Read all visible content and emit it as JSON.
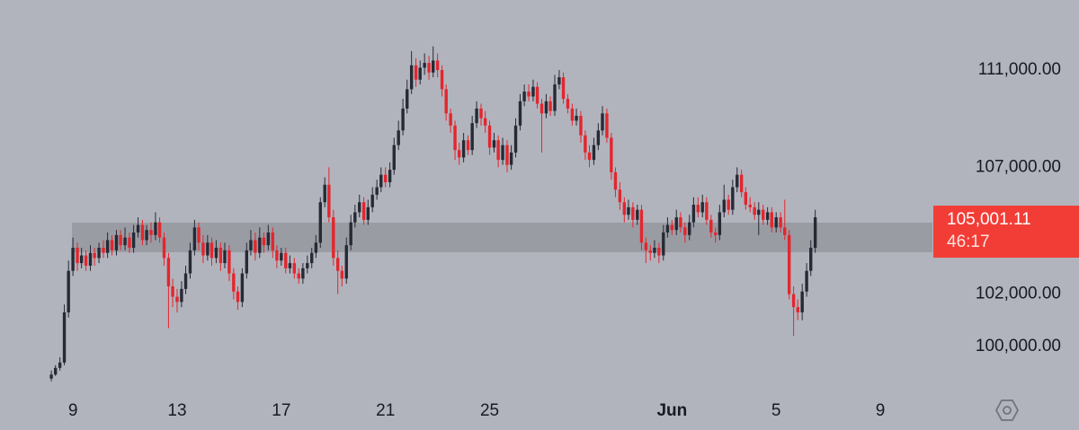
{
  "chart_data": {
    "type": "candlestick",
    "x": [
      8.17,
      8.33,
      8.5,
      8.67,
      8.83,
      9,
      9.17,
      9.33,
      9.5,
      9.67,
      9.83,
      10,
      10.17,
      10.33,
      10.5,
      10.67,
      10.83,
      11,
      11.17,
      11.33,
      11.5,
      11.67,
      11.83,
      12,
      12.17,
      12.33,
      12.5,
      12.67,
      12.83,
      13,
      13.17,
      13.33,
      13.5,
      13.67,
      13.83,
      14,
      14.17,
      14.33,
      14.5,
      14.67,
      14.83,
      15,
      15.17,
      15.33,
      15.5,
      15.67,
      15.83,
      16,
      16.17,
      16.33,
      16.5,
      16.67,
      16.83,
      17,
      17.17,
      17.33,
      17.5,
      17.67,
      17.83,
      18,
      18.17,
      18.33,
      18.5,
      18.67,
      18.83,
      19,
      19.17,
      19.33,
      19.5,
      19.67,
      19.83,
      20,
      20.17,
      20.33,
      20.5,
      20.67,
      20.83,
      21,
      21.17,
      21.33,
      21.5,
      21.67,
      21.83,
      22,
      22.17,
      22.33,
      22.5,
      22.67,
      22.83,
      23,
      23.17,
      23.33,
      23.5,
      23.67,
      23.83,
      24,
      24.17,
      24.33,
      24.5,
      24.67,
      24.83,
      25,
      25.17,
      25.33,
      25.5,
      25.67,
      25.83,
      26,
      26.17,
      26.33,
      26.5,
      26.67,
      26.83,
      27,
      27.17,
      27.33,
      27.5,
      27.67,
      27.83,
      28,
      28.17,
      28.33,
      28.5,
      28.67,
      28.83,
      29,
      29.17,
      29.33,
      29.5,
      29.67,
      29.83,
      30,
      30.17,
      30.33,
      30.5,
      30.67,
      30.83,
      31,
      31.17,
      31.33,
      31.5,
      31.67,
      31.83,
      32,
      32.17,
      32.33,
      32.5,
      32.67,
      32.83,
      33,
      33.17,
      33.33,
      33.5,
      33.67,
      33.83,
      34,
      34.17,
      34.33,
      34.5,
      34.67,
      34.83,
      35,
      35.17,
      35.33,
      35.5,
      35.67,
      35.83,
      36,
      36.17,
      36.33,
      36.5,
      36.67,
      36.83,
      37,
      37.17,
      37.33,
      37.5
    ],
    "open": [
      98800,
      98950,
      99200,
      99400,
      101300,
      102900,
      103800,
      103200,
      103500,
      103100,
      103600,
      103400,
      103800,
      103600,
      104100,
      103700,
      104300,
      103900,
      104200,
      103800,
      104400,
      104700,
      104100,
      104500,
      104300,
      104800,
      104200,
      103400,
      102300,
      101900,
      101700,
      102200,
      102800,
      103700,
      104600,
      104000,
      103500,
      104000,
      103400,
      103800,
      103200,
      103700,
      102800,
      102100,
      101700,
      102800,
      103700,
      104100,
      103600,
      104200,
      103900,
      104400,
      103700,
      103300,
      103600,
      103000,
      103200,
      102800,
      102600,
      103000,
      103200,
      103600,
      104000,
      105600,
      106300,
      105000,
      103400,
      102900,
      102600,
      103900,
      104800,
      105200,
      105600,
      104900,
      105400,
      105900,
      106200,
      106700,
      106400,
      106900,
      107900,
      108500,
      109400,
      110200,
      111200,
      110600,
      111100,
      111300,
      110900,
      111400,
      111000,
      110200,
      109200,
      108700,
      107700,
      107400,
      108100,
      107700,
      108800,
      109400,
      109000,
      108700,
      107800,
      108100,
      107300,
      107900,
      107100,
      107600,
      108700,
      109700,
      110100,
      109900,
      110300,
      109600,
      109200,
      109700,
      109300,
      110400,
      110700,
      109800,
      109400,
      108900,
      109100,
      108300,
      107600,
      107300,
      107900,
      108500,
      109200,
      108200,
      106800,
      106100,
      105600,
      105100,
      105400,
      104900,
      105300,
      104000,
      103700,
      103600,
      103800,
      103500,
      104400,
      104700,
      104500,
      105000,
      104600,
      104300,
      104800,
      105500,
      105200,
      105600,
      104900,
      104400,
      104300,
      105200,
      105700,
      105300,
      106200,
      106700,
      106000,
      105500,
      105400,
      105100,
      105300,
      104900,
      105200,
      104600,
      105000,
      104600,
      104300,
      102000,
      101500,
      101300,
      102100,
      102900,
      103800
    ],
    "high": [
      99100,
      99300,
      99600,
      101600,
      103300,
      104200,
      104000,
      103800,
      103700,
      103900,
      103800,
      104000,
      104100,
      104400,
      104300,
      104500,
      104500,
      104600,
      104400,
      104700,
      105000,
      104900,
      104700,
      104800,
      105200,
      105000,
      104400,
      103600,
      102600,
      102200,
      102500,
      103100,
      104000,
      104900,
      104800,
      104300,
      104300,
      104200,
      104100,
      104000,
      104000,
      103900,
      103000,
      102300,
      103000,
      104000,
      104500,
      104400,
      104600,
      104400,
      104700,
      104600,
      103900,
      103800,
      103800,
      103500,
      103400,
      103000,
      103200,
      103500,
      103800,
      104300,
      105800,
      106600,
      107000,
      105300,
      103700,
      103100,
      104200,
      105100,
      105500,
      105900,
      105800,
      105700,
      106200,
      106500,
      107000,
      107000,
      107200,
      108200,
      108900,
      109800,
      110600,
      111800,
      111500,
      111400,
      111700,
      111600,
      112000,
      111700,
      111200,
      110400,
      109400,
      108900,
      108000,
      108400,
      108300,
      109100,
      109700,
      109600,
      109300,
      108900,
      108400,
      108300,
      108200,
      108100,
      107900,
      109000,
      110000,
      110400,
      110400,
      110600,
      110500,
      109800,
      110000,
      109900,
      110800,
      111000,
      110900,
      110000,
      109600,
      109400,
      109300,
      108500,
      107900,
      108200,
      108800,
      109500,
      109400,
      108400,
      107000,
      106400,
      105800,
      105700,
      105600,
      105500,
      105500,
      104200,
      103900,
      104100,
      104000,
      104700,
      105000,
      104900,
      105300,
      105200,
      104800,
      105100,
      105800,
      105800,
      105900,
      105800,
      105100,
      104600,
      105500,
      106300,
      105900,
      106500,
      107000,
      106900,
      106200,
      105800,
      105600,
      105600,
      105500,
      105400,
      105400,
      105200,
      105200,
      105700,
      104500,
      102300,
      101800,
      102400,
      103200,
      104100,
      105300
    ],
    "low": [
      98700,
      98900,
      99100,
      99300,
      101100,
      102700,
      102900,
      103000,
      102900,
      102900,
      103100,
      103200,
      103400,
      103400,
      103500,
      103500,
      103700,
      103700,
      103600,
      103600,
      104200,
      103900,
      103900,
      104000,
      104100,
      104000,
      103100,
      100700,
      101500,
      101300,
      101500,
      102000,
      102600,
      103500,
      103700,
      103200,
      103300,
      103100,
      103200,
      102900,
      103000,
      102500,
      101800,
      101400,
      101500,
      102600,
      103500,
      103300,
      103400,
      103600,
      103700,
      103400,
      103000,
      103100,
      102800,
      102800,
      102600,
      102400,
      102400,
      102800,
      103000,
      103400,
      103800,
      105400,
      104800,
      103100,
      102000,
      102300,
      102400,
      103700,
      104600,
      105000,
      104700,
      104700,
      105200,
      105700,
      106000,
      106200,
      106200,
      106700,
      107700,
      108300,
      109200,
      110000,
      110300,
      110400,
      110800,
      110600,
      110700,
      110700,
      109900,
      108900,
      108400,
      107300,
      107100,
      107200,
      107500,
      107500,
      108600,
      108700,
      108400,
      107500,
      107600,
      107000,
      107100,
      106800,
      106900,
      107400,
      108500,
      109500,
      109700,
      109700,
      109400,
      107600,
      109000,
      109100,
      109100,
      110200,
      109600,
      109200,
      108700,
      108700,
      108000,
      107300,
      107000,
      107100,
      107700,
      108300,
      108000,
      106500,
      105800,
      105300,
      104800,
      104900,
      104600,
      104700,
      103700,
      103200,
      103300,
      103400,
      103200,
      103300,
      104200,
      104300,
      104300,
      104400,
      104000,
      104100,
      104600,
      105000,
      105000,
      104700,
      104200,
      104000,
      104100,
      105000,
      105100,
      105100,
      106000,
      105800,
      105300,
      105200,
      104900,
      104300,
      104700,
      104700,
      104400,
      104400,
      104400,
      104100,
      101800,
      100400,
      101000,
      101000,
      101900,
      102700,
      103600
    ],
    "close": [
      98950,
      99200,
      99400,
      101300,
      102900,
      103800,
      103200,
      103500,
      103100,
      103600,
      103400,
      103800,
      103600,
      104100,
      103700,
      104300,
      103900,
      104200,
      103800,
      104400,
      104700,
      104100,
      104500,
      104300,
      104800,
      104200,
      103400,
      102300,
      101900,
      101700,
      102200,
      102800,
      103700,
      104600,
      104000,
      103500,
      104000,
      103400,
      103800,
      103200,
      103700,
      102800,
      102100,
      101700,
      102800,
      103700,
      104100,
      103600,
      104200,
      103900,
      104400,
      103700,
      103300,
      103600,
      103000,
      103200,
      102800,
      102600,
      103000,
      103200,
      103600,
      104000,
      105600,
      106300,
      105000,
      103400,
      102900,
      102600,
      103900,
      104800,
      105200,
      105600,
      104900,
      105400,
      105900,
      106200,
      106700,
      106400,
      106900,
      107900,
      108500,
      109400,
      110200,
      111200,
      110600,
      111100,
      111300,
      110900,
      111400,
      111000,
      110200,
      109200,
      108700,
      107700,
      107400,
      108100,
      107700,
      108800,
      109400,
      109000,
      108700,
      107800,
      108100,
      107300,
      107900,
      107100,
      107600,
      108700,
      109700,
      110100,
      109900,
      110300,
      109600,
      109200,
      109700,
      109300,
      110400,
      110700,
      109800,
      109400,
      108900,
      109100,
      108300,
      107600,
      107300,
      107900,
      108500,
      109200,
      108200,
      106800,
      106100,
      105600,
      105100,
      105400,
      104900,
      105300,
      104000,
      103700,
      103600,
      103800,
      103500,
      104400,
      104700,
      104500,
      105000,
      104600,
      104300,
      104800,
      105500,
      105200,
      105600,
      104900,
      104400,
      104300,
      105200,
      105700,
      105300,
      106200,
      106700,
      106000,
      105500,
      105400,
      105100,
      105300,
      104900,
      105200,
      104600,
      105000,
      104600,
      104300,
      102000,
      101500,
      101300,
      102100,
      102900,
      103800,
      105001.11
    ],
    "up_color": "#262a35",
    "down_color": "#e3262e",
    "xlim": [
      6.2,
      42.0
    ],
    "xticks": [
      9,
      13,
      17,
      21,
      25,
      {
        "value": 32,
        "label": "Jun"
      },
      {
        "value": 36,
        "label": "5"
      },
      {
        "value": 40,
        "label": "9"
      }
    ],
    "ylim": [
      98190,
      113975
    ],
    "log_scale": true,
    "yticks": [
      {
        "value": 100000,
        "label": "100,000.00"
      },
      {
        "value": 102000,
        "label": "102,000.00"
      },
      {
        "value": 107000,
        "label": "107,000.00"
      },
      {
        "value": 111000,
        "label": "111,000.00"
      }
    ],
    "current_price": {
      "value": 105001.11,
      "label": "105,001.11"
    },
    "countdown": "46:17"
  }
}
